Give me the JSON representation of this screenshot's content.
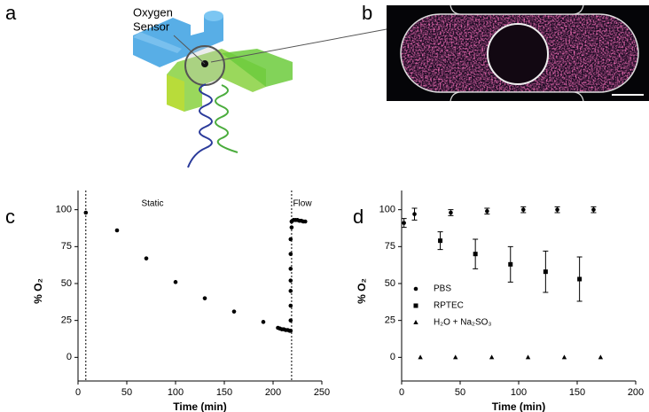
{
  "panel_labels": [
    "a",
    "b",
    "c",
    "d"
  ],
  "sensor_label": [
    "Oxygen",
    "Sensor"
  ],
  "chart_data": [
    {
      "type": "scatter",
      "xlabel": "Time (min)",
      "ylabel": "% O₂",
      "xlim": [
        0,
        250
      ],
      "xticks": [
        0,
        50,
        100,
        150,
        200,
        250
      ],
      "ylim": [
        -16,
        113
      ],
      "yticks": [
        0,
        25,
        50,
        75,
        100
      ],
      "color": "#000000",
      "marker": "circle",
      "vlines": [
        8,
        219
      ],
      "annotations": [
        "Static",
        "Flow"
      ],
      "x": [
        8,
        40,
        70,
        100,
        130,
        160,
        190,
        205,
        207,
        209,
        211,
        213,
        215,
        217,
        218,
        218,
        218,
        218,
        218,
        218,
        218,
        218,
        219,
        219,
        221,
        223,
        225,
        227,
        229,
        231,
        233
      ],
      "values": [
        98,
        86,
        67,
        51,
        40,
        31,
        24,
        20,
        19.5,
        19,
        19,
        18.5,
        18.5,
        18,
        18,
        25,
        35,
        45,
        52,
        60,
        70,
        80,
        88,
        92,
        93,
        93,
        93,
        92.5,
        92.5,
        92,
        92
      ]
    },
    {
      "type": "scatter",
      "xlabel": "Time (min)",
      "ylabel": "% O₂",
      "xlim": [
        0,
        200
      ],
      "xticks": [
        0,
        50,
        100,
        150,
        200
      ],
      "ylim": [
        -16,
        113
      ],
      "yticks": [
        0,
        25,
        50,
        75,
        100
      ],
      "legend": "lower left",
      "series": [
        {
          "name": "PBS",
          "color": "#000000",
          "marker": "circle",
          "x": [
            2,
            11,
            42,
            73,
            104,
            133,
            164
          ],
          "values": [
            91,
            97,
            98,
            99,
            100,
            100,
            100
          ],
          "errors": [
            3,
            4,
            2,
            2,
            2,
            2,
            2
          ]
        },
        {
          "name": "RPTEC",
          "color": "#000000",
          "marker": "square",
          "x": [
            33,
            63,
            93,
            123,
            152
          ],
          "values": [
            79,
            70,
            63,
            58,
            53
          ],
          "errors": [
            6,
            10,
            12,
            14,
            15
          ]
        },
        {
          "name": "H₂O + Na₂SO₃",
          "color": "#000000",
          "marker": "triangle",
          "x": [
            16,
            46,
            77,
            108,
            139,
            170
          ],
          "values": [
            0,
            0,
            0,
            0,
            0,
            0
          ]
        }
      ]
    }
  ]
}
